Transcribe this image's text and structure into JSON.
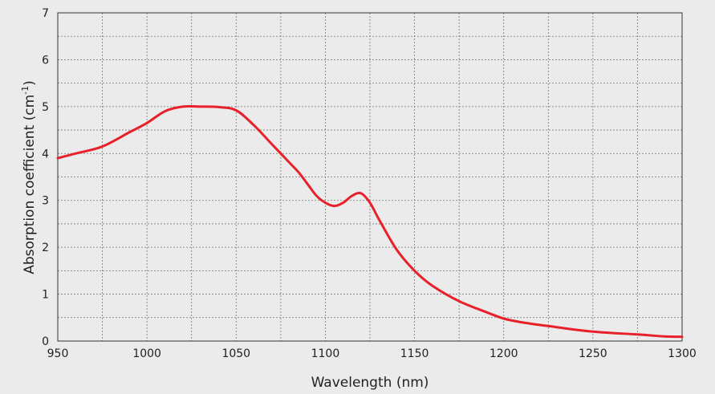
{
  "chart_data": {
    "type": "line",
    "xlabel": "Wavelength  (nm)",
    "ylabel_main": "Absorption coefficient (cm",
    "ylabel_sup": "-1",
    "ylabel_close": ")",
    "xlim": [
      950,
      1300
    ],
    "ylim": [
      0,
      7
    ],
    "x_ticks": [
      "950",
      "1000",
      "1050",
      "1100",
      "1150",
      "1200",
      "1250",
      "1300"
    ],
    "y_ticks": [
      "0",
      "1",
      "2",
      "3",
      "4",
      "5",
      "6",
      "7"
    ],
    "grid": true,
    "line_color": "#e8202a",
    "series": [
      {
        "x": [
          950,
          960,
          975,
          990,
          1000,
          1010,
          1020,
          1030,
          1040,
          1050,
          1060,
          1070,
          1080,
          1085,
          1090,
          1095,
          1100,
          1105,
          1110,
          1115,
          1120,
          1125,
          1130,
          1140,
          1150,
          1160,
          1175,
          1190,
          1200,
          1210,
          1225,
          1250,
          1275,
          1290,
          1300
        ],
        "y": [
          3.9,
          4.0,
          4.15,
          4.45,
          4.65,
          4.9,
          5.0,
          5.0,
          4.99,
          4.92,
          4.6,
          4.2,
          3.8,
          3.6,
          3.35,
          3.1,
          2.95,
          2.88,
          2.95,
          3.1,
          3.15,
          2.95,
          2.6,
          1.95,
          1.5,
          1.18,
          0.85,
          0.62,
          0.48,
          0.4,
          0.32,
          0.2,
          0.14,
          0.1,
          0.09
        ]
      }
    ]
  }
}
